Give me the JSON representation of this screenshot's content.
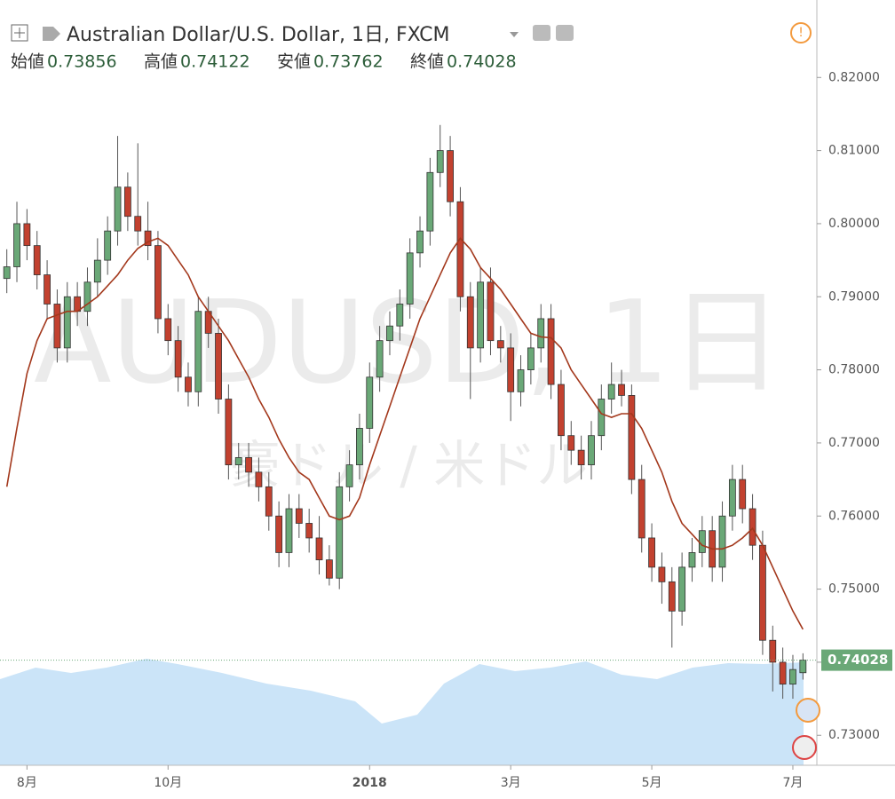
{
  "chart_data": {
    "type": "candlestick",
    "title": "Australian Dollar/U.S. Dollar, 1日, FXCM",
    "labels": {
      "open": "始値",
      "high": "高値",
      "low": "安値",
      "close": "終値"
    },
    "watermark": [
      "AUDUSD, 1日",
      "豪ドル / 米ドル"
    ],
    "categories": [
      null,
      null,
      "8月",
      null,
      null,
      null,
      null,
      null,
      null,
      null,
      null,
      null,
      null,
      null,
      null,
      null,
      "10月",
      null,
      null,
      null,
      null,
      null,
      null,
      null,
      null,
      null,
      null,
      null,
      null,
      null,
      null,
      null,
      null,
      null,
      null,
      null,
      "2018",
      null,
      null,
      null,
      null,
      null,
      null,
      null,
      null,
      null,
      null,
      null,
      null,
      null,
      "3月",
      null,
      null,
      null,
      null,
      null,
      null,
      null,
      null,
      null,
      null,
      null,
      null,
      null,
      "5月",
      null,
      null,
      null,
      null,
      null,
      null,
      null,
      null,
      null,
      null,
      null,
      null,
      null,
      "7月",
      null
    ],
    "open": [
      0.7925,
      0.7941,
      0.8,
      0.797,
      0.793,
      0.789,
      0.783,
      0.79,
      0.788,
      0.792,
      0.795,
      0.799,
      0.805,
      0.801,
      0.799,
      0.797,
      0.787,
      0.784,
      0.779,
      0.777,
      0.788,
      0.785,
      0.776,
      0.767,
      0.768,
      0.766,
      0.764,
      0.76,
      0.755,
      0.761,
      0.759,
      0.757,
      0.754,
      0.7515,
      0.764,
      0.767,
      0.772,
      0.779,
      0.784,
      0.786,
      0.789,
      0.796,
      0.799,
      0.807,
      0.81,
      0.803,
      0.79,
      0.783,
      0.792,
      0.784,
      0.783,
      0.777,
      0.78,
      0.783,
      0.787,
      0.778,
      0.771,
      0.769,
      0.767,
      0.771,
      0.776,
      0.778,
      0.7765,
      0.765,
      0.757,
      0.753,
      0.751,
      0.747,
      0.753,
      0.755,
      0.758,
      0.753,
      0.76,
      0.765,
      0.761,
      0.756,
      0.743,
      0.74,
      0.737,
      0.73856
    ],
    "high": [
      0.7965,
      0.803,
      0.802,
      0.799,
      0.795,
      0.791,
      0.792,
      0.792,
      0.794,
      0.798,
      0.801,
      0.812,
      0.807,
      0.811,
      0.803,
      0.799,
      0.789,
      0.786,
      0.781,
      0.79,
      0.79,
      0.787,
      0.778,
      0.77,
      0.77,
      0.768,
      0.766,
      0.762,
      0.763,
      0.763,
      0.761,
      0.76,
      0.756,
      0.766,
      0.769,
      0.774,
      0.781,
      0.786,
      0.788,
      0.791,
      0.798,
      0.801,
      0.809,
      0.8135,
      0.812,
      0.805,
      0.792,
      0.794,
      0.794,
      0.786,
      0.785,
      0.782,
      0.785,
      0.789,
      0.789,
      0.78,
      0.773,
      0.771,
      0.773,
      0.778,
      0.781,
      0.78,
      0.778,
      0.767,
      0.759,
      0.755,
      0.753,
      0.755,
      0.757,
      0.76,
      0.76,
      0.762,
      0.767,
      0.767,
      0.763,
      0.758,
      0.745,
      0.742,
      0.741,
      0.74122
    ],
    "low": [
      0.7905,
      0.792,
      0.795,
      0.791,
      0.787,
      0.781,
      0.781,
      0.786,
      0.786,
      0.79,
      0.793,
      0.797,
      0.799,
      0.797,
      0.795,
      0.785,
      0.782,
      0.777,
      0.775,
      0.775,
      0.783,
      0.774,
      0.765,
      0.765,
      0.764,
      0.762,
      0.758,
      0.753,
      0.753,
      0.757,
      0.755,
      0.752,
      0.7505,
      0.75,
      0.762,
      0.765,
      0.77,
      0.777,
      0.782,
      0.784,
      0.787,
      0.794,
      0.797,
      0.805,
      0.801,
      0.788,
      0.776,
      0.781,
      0.782,
      0.781,
      0.773,
      0.775,
      0.778,
      0.781,
      0.776,
      0.769,
      0.767,
      0.765,
      0.765,
      0.769,
      0.774,
      0.775,
      0.763,
      0.755,
      0.751,
      0.748,
      0.742,
      0.745,
      0.751,
      0.753,
      0.751,
      0.751,
      0.758,
      0.759,
      0.754,
      0.741,
      0.736,
      0.735,
      0.735,
      0.73762
    ],
    "close": [
      0.7941,
      0.8,
      0.797,
      0.793,
      0.789,
      0.783,
      0.79,
      0.788,
      0.792,
      0.795,
      0.799,
      0.805,
      0.801,
      0.799,
      0.797,
      0.787,
      0.784,
      0.779,
      0.777,
      0.788,
      0.785,
      0.776,
      0.767,
      0.768,
      0.766,
      0.764,
      0.76,
      0.755,
      0.761,
      0.759,
      0.757,
      0.754,
      0.7515,
      0.764,
      0.767,
      0.772,
      0.779,
      0.784,
      0.786,
      0.789,
      0.796,
      0.799,
      0.807,
      0.81,
      0.803,
      0.79,
      0.783,
      0.792,
      0.784,
      0.783,
      0.777,
      0.78,
      0.783,
      0.787,
      0.778,
      0.771,
      0.769,
      0.767,
      0.771,
      0.776,
      0.778,
      0.7765,
      0.765,
      0.757,
      0.753,
      0.751,
      0.747,
      0.753,
      0.755,
      0.758,
      0.753,
      0.76,
      0.765,
      0.761,
      0.756,
      0.743,
      0.74,
      0.737,
      0.739,
      0.74028
    ],
    "up_color": "#6aa877",
    "down_color": "#c2412f",
    "ma": {
      "color": "#a3381c",
      "values": [
        0.764,
        0.772,
        0.7795,
        0.784,
        0.787,
        0.7875,
        0.788,
        0.788,
        0.789,
        0.79,
        0.7915,
        0.793,
        0.795,
        0.7966,
        0.7975,
        0.798,
        0.797,
        0.795,
        0.793,
        0.79,
        0.788,
        0.786,
        0.784,
        0.7815,
        0.779,
        0.776,
        0.7735,
        0.7705,
        0.768,
        0.766,
        0.765,
        0.7625,
        0.76,
        0.7595,
        0.76,
        0.7625,
        0.767,
        0.771,
        0.775,
        0.779,
        0.783,
        0.787,
        0.79,
        0.793,
        0.796,
        0.798,
        0.7965,
        0.794,
        0.7925,
        0.791,
        0.789,
        0.787,
        0.785,
        0.7845,
        0.7844,
        0.783,
        0.78,
        0.778,
        0.776,
        0.774,
        0.7735,
        0.774,
        0.774,
        0.772,
        0.769,
        0.766,
        0.762,
        0.759,
        0.7575,
        0.756,
        0.7555,
        0.7555,
        0.756,
        0.757,
        0.7583,
        0.756,
        0.753,
        0.75,
        0.747,
        0.7445
      ]
    },
    "ylim": [
      0.7259,
      0.8306
    ],
    "yticks": [
      {
        "value": 0.73,
        "label": "0.73000"
      },
      {
        "value": 0.74,
        "label": "0.74000"
      },
      {
        "value": 0.75,
        "label": "0.75000"
      },
      {
        "value": 0.76,
        "label": "0.76000"
      },
      {
        "value": 0.77,
        "label": "0.77000"
      },
      {
        "value": 0.78,
        "label": "0.78000"
      },
      {
        "value": 0.79,
        "label": "0.79000"
      },
      {
        "value": 0.8,
        "label": "0.80000"
      },
      {
        "value": 0.81,
        "label": "0.81000"
      },
      {
        "value": 0.82,
        "label": "0.82000"
      }
    ]
  }
}
